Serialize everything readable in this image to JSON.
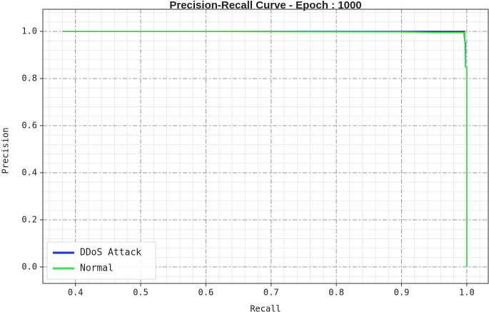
{
  "chart_data": {
    "type": "line",
    "title": "Precision-Recall Curve - Epoch : 1000",
    "xlabel": "Recall",
    "ylabel": "Precision",
    "series": [
      {
        "name": "DDoS Attack",
        "color": "#2233cc",
        "x": [
          0.617,
          0.9,
          0.996,
          0.997,
          0.998,
          0.998,
          0.999
        ],
        "values": [
          1.0,
          1.0,
          1.0,
          0.96,
          0.95,
          0.85,
          0.85
        ]
      },
      {
        "name": "Normal",
        "color": "#44dd55",
        "x": [
          0.38,
          0.617,
          0.9,
          0.95,
          0.997,
          0.998,
          1.0,
          1.0
        ],
        "values": [
          1.0,
          1.0,
          0.998,
          0.995,
          0.995,
          0.85,
          0.85,
          0.0
        ]
      }
    ],
    "xlim": [
      0.35,
      1.033
    ],
    "ylim": [
      -0.07,
      1.094
    ],
    "xticks": [
      0.4,
      0.5,
      0.6,
      0.7,
      0.8,
      0.9,
      {
        "value": 1.0,
        "label": "1.0"
      }
    ],
    "yticks": [
      {
        "value": 0,
        "label": "0.0"
      },
      0.2,
      0.4,
      0.6,
      0.8,
      {
        "value": 1,
        "label": "1.0"
      }
    ],
    "grid": true,
    "minor_grid": true,
    "legend": "lower left"
  }
}
